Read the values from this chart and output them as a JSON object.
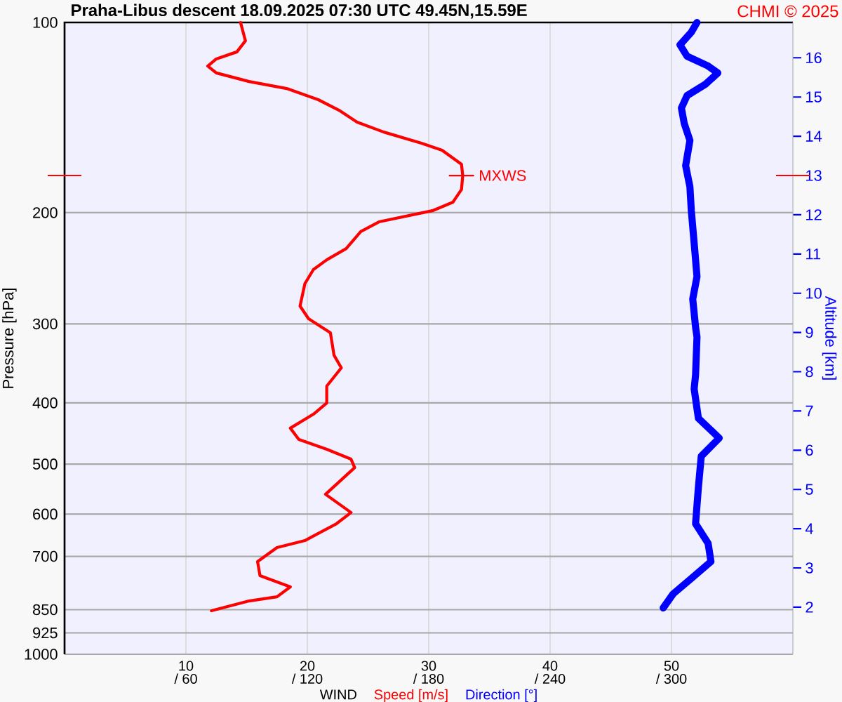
{
  "chart_data": {
    "type": "line",
    "title": "Praha-Libus   descent   18.09.2025 07:30 UTC  49.45N,15.59E",
    "xlabel": "WIND",
    "ylabel": "Pressure [hPa]",
    "y2label": "Altitude [km]",
    "annotations": [
      "CHMI © 2025",
      {
        "text": "MXWS",
        "x": 32.7,
        "y": 174.7
      }
    ],
    "xlim": [
      0,
      60
    ],
    "xticks": [
      10,
      20,
      30,
      40,
      50
    ],
    "x2lim": [
      0,
      360
    ],
    "x2ticks": [
      {
        "value": 60,
        "label": "/ 60"
      },
      {
        "value": 120,
        "label": "/ 120"
      },
      {
        "value": 180,
        "label": "/ 180"
      },
      {
        "value": 240,
        "label": "/ 240"
      },
      {
        "value": 300,
        "label": "/ 300"
      }
    ],
    "ylim": [
      1000,
      100
    ],
    "yticks": [
      100,
      200,
      300,
      400,
      500,
      600,
      700,
      850,
      925,
      1000
    ],
    "y2lim": [
      0.8,
      16.9
    ],
    "y2ticks": [
      2,
      3,
      4,
      5,
      6,
      7,
      8,
      9,
      10,
      11,
      12,
      13,
      14,
      15,
      16
    ],
    "log": "y",
    "grid": true,
    "legend": "bottom",
    "series": [
      {
        "name": "Speed [m/s]",
        "color": "#ff0000",
        "x": [
          14.5,
          14.9,
          14.2,
          12.5,
          11.8,
          12.5,
          15.2,
          18.3,
          20.9,
          22.7,
          24.1,
          26.3,
          29.4,
          31.1,
          32.7,
          32.8,
          32.7,
          32.0,
          30.3,
          25.9,
          24.4,
          23.2,
          21.6,
          20.5,
          19.8,
          19.4,
          20.1,
          21.9,
          22.2,
          22.8,
          21.6,
          21.6,
          20.5,
          18.6,
          19.3,
          21.6,
          23.6,
          23.9,
          21.5,
          23.6,
          22.4,
          19.8,
          17.5,
          15.9,
          16.1,
          18.6,
          17.5,
          15.2,
          12.1
        ],
        "values": [
          100,
          106.9,
          111.3,
          114.2,
          117.2,
          120.2,
          124.0,
          127.2,
          132.5,
          138.0,
          143.8,
          149.1,
          155.3,
          159.3,
          167.7,
          174.7,
          183.8,
          192.5,
          198.6,
          206.8,
          214.3,
          228.0,
          237.5,
          246.1,
          259.0,
          281.1,
          294.4,
          309.8,
          336.3,
          352.1,
          376.3,
          400.2,
          416.9,
          438.6,
          457.1,
          473.8,
          491.1,
          506.4,
          558.2,
          596.6,
          621.4,
          660.7,
          677.8,
          713.4,
          750.9,
          782.2,
          810.9,
          823.4,
          853.3
        ]
      },
      {
        "name": "Direction [°]",
        "color": "#0000ff",
        "axis": "x2",
        "x": [
          312.6,
          309.8,
          304.2,
          307.7,
          318.1,
          322.9,
          316.7,
          307.7,
          304.9,
          306.3,
          309.1,
          307.0,
          309.1,
          309.8,
          311.2,
          312.6,
          310.5,
          311.9,
          312.6,
          311.9,
          311.2,
          313.3,
          323.6,
          314.7,
          313.3,
          311.9,
          318.1,
          319.5,
          309.8,
          300.8,
          295.9
        ],
        "values": [
          100,
          103.6,
          108.5,
          113.1,
          117.2,
          120.2,
          125.3,
          130.5,
          136.6,
          144.5,
          153.7,
          168.5,
          182.0,
          198.6,
          223.4,
          252.5,
          274.0,
          303.5,
          314.6,
          361.3,
          380.2,
          423.2,
          454.8,
          485.9,
          544.0,
          621.4,
          667.5,
          713.4,
          758.6,
          802.4,
          844.6
        ]
      }
    ]
  }
}
